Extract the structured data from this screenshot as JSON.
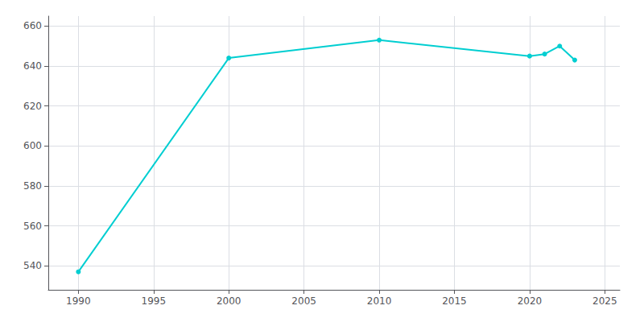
{
  "chart_data": {
    "type": "line",
    "x": [
      1990,
      2000,
      2010,
      2020,
      2021,
      2022,
      2023
    ],
    "values": [
      537,
      644,
      653,
      645,
      646,
      650,
      643
    ],
    "color": "#00CED1",
    "marker": "circle",
    "xlim": [
      1988,
      2026
    ],
    "ylim": [
      528,
      665
    ],
    "xticks": [
      1990,
      1995,
      2000,
      2005,
      2010,
      2015,
      2020,
      2025
    ],
    "yticks": [
      540,
      560,
      580,
      600,
      620,
      640,
      660
    ],
    "grid": true
  }
}
